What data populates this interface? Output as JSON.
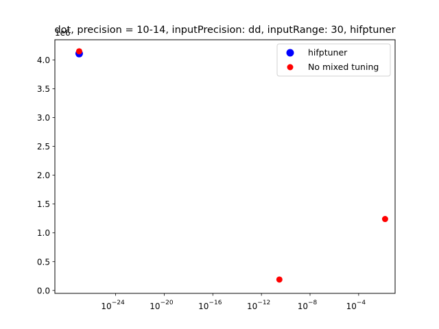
{
  "chart_data": {
    "type": "scatter",
    "title": "dot, precision = 10-14, inputPrecision: dd, inputRange: 30, hifptuner",
    "xlabel": "",
    "ylabel": "",
    "xscale": "log",
    "xlim": [
      1e-29,
      0.1
    ],
    "ylim": [
      -0.05,
      4.35
    ],
    "y_offset_label": "1e6",
    "y_multiplier": 1000000,
    "yticks": [
      0.0,
      0.5,
      1.0,
      1.5,
      2.0,
      2.5,
      3.0,
      3.5,
      4.0
    ],
    "ytick_labels": [
      "0.0",
      "0.5",
      "1.0",
      "1.5",
      "2.0",
      "2.5",
      "3.0",
      "3.5",
      "4.0"
    ],
    "xticks": [
      1e-24,
      1e-20,
      1e-16,
      1e-12,
      1e-08,
      0.0001
    ],
    "xtick_bases": [
      "10",
      "10",
      "10",
      "10",
      "10",
      "10"
    ],
    "xtick_exponents": [
      "−24",
      "−20",
      "−16",
      "−12",
      "−8",
      "−4"
    ],
    "grid": false,
    "legend_position": "top-right",
    "series": [
      {
        "name": "hifptuner",
        "color": "#0000ff",
        "marker_size": "large",
        "points": [
          {
            "x": 1e-27,
            "y": 4.11
          }
        ]
      },
      {
        "name": "No mixed tuning",
        "color": "#ff0000",
        "marker_size": "small",
        "points": [
          {
            "x": 1e-27,
            "y": 4.15
          },
          {
            "x": 3e-11,
            "y": 0.19
          },
          {
            "x": 0.015,
            "y": 1.24
          }
        ]
      }
    ]
  }
}
